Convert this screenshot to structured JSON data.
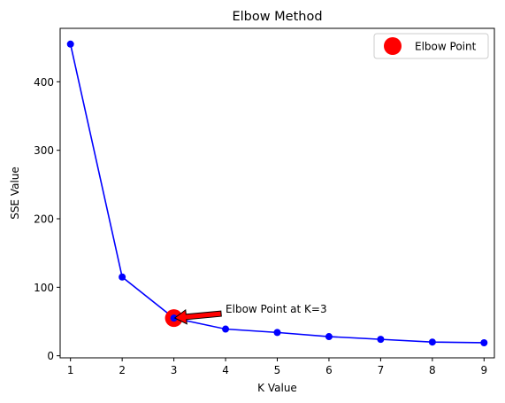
{
  "chart_data": {
    "type": "line",
    "title": "Elbow Method",
    "xlabel": "K Value",
    "ylabel": "SSE Value",
    "x": [
      1,
      2,
      3,
      4,
      5,
      6,
      7,
      8,
      9
    ],
    "series": [
      {
        "name": "",
        "values": [
          455,
          115,
          55,
          39,
          34,
          28,
          24,
          20,
          19
        ],
        "color": "#0000ff"
      }
    ],
    "xlim": [
      0.8,
      9.2
    ],
    "ylim": [
      -3,
      478
    ],
    "xticks": [
      1,
      2,
      3,
      4,
      5,
      6,
      7,
      8,
      9
    ],
    "yticks": [
      0,
      100,
      200,
      300,
      400
    ],
    "grid": false,
    "highlight": {
      "name": "Elbow Point",
      "x": 3,
      "y": 55,
      "color": "#ff0000"
    },
    "annotation": {
      "text": "Elbow Point at K=3",
      "x": 3,
      "y": 55,
      "text_x": 4,
      "text_y": 68,
      "arrow_color": "#ff0000"
    },
    "legend": {
      "position": "top-right",
      "entries": [
        "Elbow Point"
      ]
    }
  }
}
